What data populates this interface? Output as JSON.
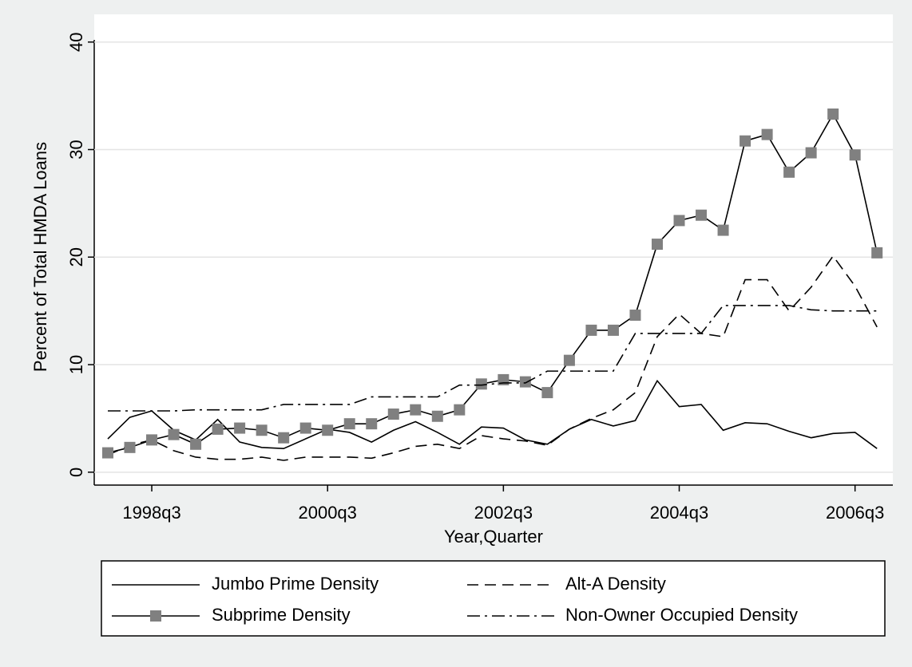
{
  "chart_data": {
    "type": "line",
    "y_label": "Percent of Total HMDA Loans",
    "x_label": "Year,Quarter",
    "x": [
      "1998q1",
      "1998q2",
      "1998q3",
      "1998q4",
      "1999q1",
      "1999q2",
      "1999q3",
      "1999q4",
      "2000q1",
      "2000q2",
      "2000q3",
      "2000q4",
      "2001q1",
      "2001q2",
      "2001q3",
      "2001q4",
      "2002q1",
      "2002q2",
      "2002q3",
      "2002q4",
      "2003q1",
      "2003q2",
      "2003q3",
      "2003q4",
      "2004q1",
      "2004q2",
      "2004q3",
      "2004q4",
      "2005q1",
      "2005q2",
      "2005q3",
      "2005q4",
      "2006q1",
      "2006q2",
      "2006q3",
      "2006q4"
    ],
    "xticks": [
      "1998q3",
      "2000q3",
      "2002q3",
      "2004q3",
      "2006q3"
    ],
    "ylim": [
      -1.2,
      40.2
    ],
    "yticks": [
      0,
      10,
      20,
      30,
      40
    ],
    "grid": true,
    "series": [
      {
        "name": "Jumbo Prime Density",
        "color": "#000000",
        "dash": "solid",
        "marker": "none",
        "values": [
          3.1,
          5.1,
          5.7,
          3.9,
          3.0,
          4.9,
          2.8,
          2.3,
          2.2,
          3.1,
          4.0,
          3.7,
          2.8,
          3.9,
          4.7,
          3.7,
          2.6,
          4.2,
          4.1,
          3.0,
          2.6,
          4.0,
          4.9,
          4.3,
          4.8,
          8.5,
          6.1,
          6.3,
          3.9,
          4.6,
          4.5,
          3.8,
          3.2,
          3.6,
          3.7,
          2.2
        ]
      },
      {
        "name": "Alt-A Density",
        "color": "#000000",
        "dash": "dash",
        "marker": "none",
        "values": [
          1.6,
          2.5,
          3.0,
          2.0,
          1.4,
          1.2,
          1.2,
          1.4,
          1.1,
          1.4,
          1.4,
          1.4,
          1.3,
          1.8,
          2.4,
          2.6,
          2.2,
          3.4,
          3.1,
          2.9,
          2.5,
          4.0,
          5.0,
          5.8,
          7.4,
          12.6,
          14.7,
          12.9,
          12.6,
          17.9,
          17.9,
          15.0,
          17.2,
          20.1,
          17.3,
          13.5
        ]
      },
      {
        "name": "Subprime Density",
        "color": "#000000",
        "marker_color": "#808080",
        "dash": "solid",
        "marker": "square",
        "values": [
          1.8,
          2.3,
          3.0,
          3.5,
          2.6,
          4.0,
          4.1,
          3.9,
          3.2,
          4.1,
          3.9,
          4.5,
          4.5,
          5.4,
          5.8,
          5.2,
          5.8,
          8.2,
          8.6,
          8.4,
          7.4,
          10.4,
          13.2,
          13.2,
          14.6,
          21.2,
          23.4,
          23.9,
          22.5,
          30.8,
          31.4,
          27.9,
          29.7,
          33.3,
          29.5,
          20.4
        ]
      },
      {
        "name": "Non-Owner Occupied Density",
        "color": "#000000",
        "dash": "dashdot",
        "marker": "none",
        "values": [
          5.7,
          5.7,
          5.7,
          5.7,
          5.8,
          5.8,
          5.8,
          5.8,
          6.3,
          6.3,
          6.3,
          6.3,
          7.0,
          7.0,
          7.0,
          7.0,
          8.1,
          8.1,
          8.3,
          8.3,
          9.4,
          9.4,
          9.4,
          9.4,
          12.9,
          12.9,
          12.9,
          12.9,
          15.5,
          15.5,
          15.5,
          15.5,
          15.1,
          15.0,
          15.0,
          15.0
        ]
      }
    ]
  }
}
